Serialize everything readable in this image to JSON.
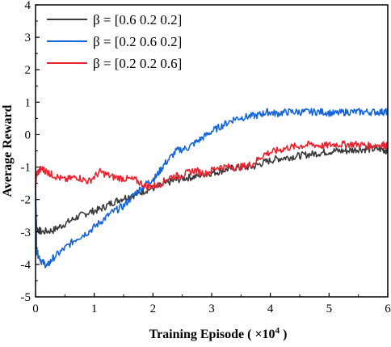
{
  "chart_data": {
    "type": "line",
    "xlabel": "Training Episode ( ×10",
    "xlabel_exponent": "4",
    "xlabel_suffix": " )",
    "ylabel": "Average Reward",
    "xlim": [
      0,
      6
    ],
    "ylim": [
      -5,
      4
    ],
    "xticks": [
      0,
      1,
      2,
      3,
      4,
      5,
      6
    ],
    "yticks": [
      -5,
      -4,
      -3,
      -2,
      -1,
      0,
      1,
      2,
      3,
      4
    ],
    "grid": false,
    "legend_position": "top-left",
    "series": [
      {
        "name": "β = [0.6  0.2  0.2]",
        "color": "#3a3a3a",
        "x": [
          0,
          0.02,
          0.1,
          0.3,
          0.5,
          0.7,
          0.9,
          1.1,
          1.3,
          1.5,
          1.7,
          1.9,
          2.1,
          2.3,
          2.5,
          2.7,
          2.9,
          3.1,
          3.3,
          3.5,
          3.7,
          3.9,
          4.1,
          4.3,
          4.5,
          4.7,
          4.9,
          5.1,
          5.3,
          5.5,
          5.7,
          5.9,
          6.0
        ],
        "y": [
          -2.0,
          -2.9,
          -3.0,
          -2.95,
          -2.75,
          -2.55,
          -2.4,
          -2.3,
          -2.1,
          -1.95,
          -1.85,
          -1.7,
          -1.6,
          -1.45,
          -1.35,
          -1.3,
          -1.2,
          -1.15,
          -1.05,
          -1.0,
          -1.0,
          -0.85,
          -0.75,
          -0.7,
          -0.65,
          -0.6,
          -0.55,
          -0.5,
          -0.5,
          -0.45,
          -0.45,
          -0.45,
          -0.5
        ]
      },
      {
        "name": "β = [0.2  0.6  0.2]",
        "color": "#1565d8",
        "x": [
          0,
          0.02,
          0.1,
          0.2,
          0.3,
          0.5,
          0.7,
          0.9,
          1.1,
          1.3,
          1.5,
          1.7,
          1.9,
          2.05,
          2.2,
          2.4,
          2.6,
          2.8,
          3.0,
          3.2,
          3.4,
          3.6,
          3.8,
          3.95,
          4.1,
          4.3,
          4.5,
          4.7,
          4.9,
          5.1,
          5.3,
          5.5,
          5.7,
          5.9,
          6.0
        ],
        "y": [
          -1.5,
          -3.6,
          -3.9,
          -4.05,
          -3.8,
          -3.5,
          -3.2,
          -3.0,
          -2.7,
          -2.4,
          -2.2,
          -1.8,
          -1.5,
          -1.3,
          -0.9,
          -0.5,
          -0.4,
          -0.15,
          0.1,
          0.3,
          0.5,
          0.55,
          0.6,
          0.7,
          0.65,
          0.7,
          0.7,
          0.7,
          0.7,
          0.65,
          0.7,
          0.7,
          0.7,
          0.7,
          0.7
        ]
      },
      {
        "name": "β = [0.2  0.2  0.6]",
        "color": "#e8232f",
        "x": [
          0,
          0.02,
          0.1,
          0.2,
          0.3,
          0.5,
          0.7,
          0.9,
          1.1,
          1.3,
          1.5,
          1.7,
          1.9,
          2.1,
          2.3,
          2.5,
          2.7,
          2.9,
          3.1,
          3.3,
          3.5,
          3.7,
          3.9,
          4.1,
          4.3,
          4.5,
          4.7,
          4.9,
          5.1,
          5.3,
          5.5,
          5.7,
          5.9,
          6.0
        ],
        "y": [
          -1.6,
          -1.2,
          -1.05,
          -1.15,
          -1.25,
          -1.4,
          -1.3,
          -1.45,
          -1.15,
          -1.3,
          -1.35,
          -1.4,
          -1.6,
          -1.55,
          -1.3,
          -1.25,
          -1.1,
          -1.2,
          -1.0,
          -1.0,
          -1.0,
          -0.9,
          -0.6,
          -0.5,
          -0.4,
          -0.35,
          -0.3,
          -0.35,
          -0.3,
          -0.3,
          -0.3,
          -0.35,
          -0.3,
          -0.35
        ]
      }
    ]
  }
}
